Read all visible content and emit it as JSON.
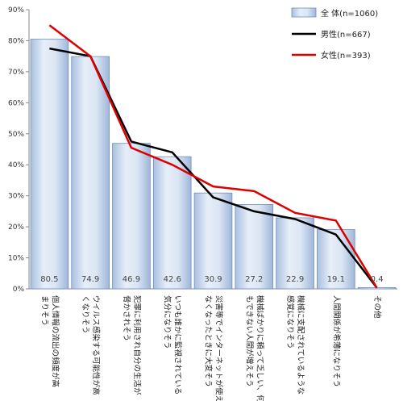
{
  "chart_data": {
    "type": "bar",
    "categories": [
      [
        "個人情報の流出の頻度が高",
        "まりそう"
      ],
      [
        "ウイルス感染する可能性が高",
        "くなりそう"
      ],
      [
        "犯罪に利用され自分の生活が",
        "脅かされそう"
      ],
      [
        "いつも誰かに監視されている",
        "気分になりそう"
      ],
      [
        "災害等でインターネットが使え",
        "なくなったときに大変そう"
      ],
      [
        "機械ばかりに頼って乏しい、何",
        "もできない人間が増えそう"
      ],
      [
        "機械に支配されているような",
        "感覚になりそう"
      ],
      [
        "人間関係が希薄になりそう"
      ],
      [
        "その他"
      ]
    ],
    "y_ticks": [
      "0%",
      "10%",
      "20%",
      "30%",
      "40%",
      "50%",
      "60%",
      "70%",
      "80%",
      "90%"
    ],
    "ylim": [
      0,
      90
    ],
    "grid": false,
    "legend_position": "top-right",
    "series": [
      {
        "name": "全 体(n=1060)",
        "kind": "bar",
        "color": "#b8cde8",
        "values": [
          80.5,
          74.9,
          46.9,
          42.6,
          30.9,
          27.2,
          22.9,
          19.1,
          0.4
        ],
        "labels": [
          "80.5",
          "74.9",
          "46.9",
          "42.6",
          "30.9",
          "27.2",
          "22.9",
          "19.1",
          "0.4"
        ]
      },
      {
        "name": "男性(n=667)",
        "kind": "line",
        "color": "#000000",
        "values": [
          77.5,
          75.0,
          47.5,
          44.0,
          29.5,
          25.0,
          22.5,
          17.5,
          0.3
        ]
      },
      {
        "name": "女性(n=393)",
        "kind": "line",
        "color": "#dd0000",
        "values": [
          85.0,
          75.0,
          45.5,
          40.0,
          33.0,
          31.5,
          24.5,
          22.0,
          0.3
        ]
      }
    ]
  }
}
